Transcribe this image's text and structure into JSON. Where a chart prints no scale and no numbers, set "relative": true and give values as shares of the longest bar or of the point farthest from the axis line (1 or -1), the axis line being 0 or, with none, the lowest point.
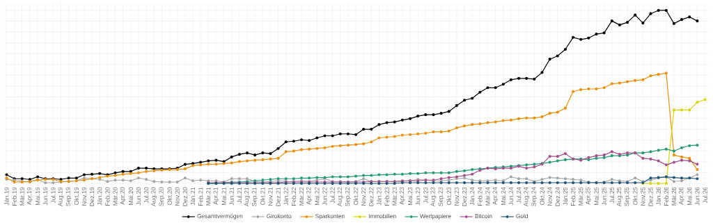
{
  "chart_data": {
    "type": "line",
    "relative": true,
    "grid": true,
    "legend": "bottom",
    "marker": "circle",
    "categories": [
      "Jän.19",
      "Feb.19",
      "Mär.19",
      "Apr.19",
      "Mai.19",
      "Jun.19",
      "Jul.19",
      "Aug.19",
      "Sep.19",
      "Okt.19",
      "Nov.19",
      "Dez.19",
      "Jän.20",
      "Feb.20",
      "Mär.20",
      "Apr.20",
      "Mai.20",
      "Jun.20",
      "Jul.20",
      "Aug.20",
      "Sep.20",
      "Okt.20",
      "Nov.20",
      "Dez.20",
      "Jän.21",
      "Feb.21",
      "Mär.21",
      "Apr.21",
      "Mai.21",
      "Jun.21",
      "Jul.21",
      "Aug.21",
      "Sep.21",
      "Okt.21",
      "Nov.21",
      "Dez.21",
      "Jän.22",
      "Feb.22",
      "Mär.22",
      "Apr.22",
      "Mai.22",
      "Jun.22",
      "Jul.22",
      "Aug.22",
      "Sep.22",
      "Okt.22",
      "Nov.22",
      "Dez.22",
      "Jän.23",
      "Feb.23",
      "Mär.23",
      "Apr.23",
      "Mai.23",
      "Jun.23",
      "Jul.23",
      "Aug.23",
      "Sep.23",
      "Okt.23",
      "Nov.23",
      "Dez.23",
      "Jän.24",
      "Feb.24",
      "Mär.24",
      "Apr.24",
      "Mai.24",
      "Jun.24",
      "Jul.24",
      "Aug.24",
      "Sep.24",
      "Okt.24",
      "Nov.24",
      "Dez.24",
      "Jän.25",
      "Feb.25",
      "Mär.25",
      "Apr.25",
      "Mai.25",
      "Jun.25",
      "Jul.25",
      "Aug.25",
      "Sep.25",
      "Okt.25",
      "Nov.25",
      "Dez.25",
      "Jän.26",
      "Feb.26",
      "Mär.26",
      "Apr.26",
      "Mai.26",
      "Jun.26",
      "Jul.26"
    ],
    "series": [
      {
        "name": "Gesamtvermögen",
        "color": "#000000",
        "values": [
          0.05,
          0.027,
          0.027,
          0.023,
          0.038,
          0.027,
          0.027,
          0.023,
          0.031,
          0.031,
          0.05,
          0.053,
          0.057,
          0.05,
          0.061,
          0.069,
          0.069,
          0.088,
          0.088,
          0.084,
          0.084,
          0.084,
          0.088,
          0.11,
          0.115,
          0.122,
          0.13,
          0.134,
          0.126,
          0.153,
          0.168,
          0.176,
          0.164,
          0.176,
          0.172,
          0.202,
          0.24,
          0.244,
          0.252,
          0.248,
          0.263,
          0.275,
          0.275,
          0.286,
          0.286,
          0.282,
          0.313,
          0.313,
          0.34,
          0.351,
          0.355,
          0.366,
          0.374,
          0.389,
          0.397,
          0.397,
          0.405,
          0.416,
          0.45,
          0.481,
          0.492,
          0.527,
          0.553,
          0.553,
          0.573,
          0.599,
          0.607,
          0.607,
          0.603,
          0.641,
          0.718,
          0.737,
          0.775,
          0.844,
          0.832,
          0.84,
          0.863,
          0.87,
          0.939,
          0.916,
          0.931,
          0.973,
          0.927,
          0.981,
          1,
          1,
          0.924,
          0.947,
          0.962,
          0.939,
          null
        ]
      },
      {
        "name": "Girokonto",
        "color": "#a5a5a5",
        "values": [
          0.023,
          0.019,
          0.011,
          0.008,
          0.023,
          0.004,
          0.004,
          0.008,
          0.011,
          0.015,
          0.031,
          0.027,
          0.023,
          0.011,
          0.019,
          0.019,
          0.015,
          0.031,
          0.023,
          0.011,
          0.008,
          0.008,
          0.008,
          0.031,
          0.015,
          0.019,
          0.015,
          0.015,
          0.008,
          0.027,
          0.027,
          0.027,
          0.011,
          0.008,
          0.011,
          0.015,
          0.011,
          0.011,
          0.015,
          0.011,
          0.019,
          0.027,
          0.011,
          0.011,
          0.008,
          0.011,
          0.027,
          0.011,
          0.011,
          0.011,
          0.011,
          0.011,
          0.015,
          0.023,
          0.019,
          0.015,
          0.015,
          0.019,
          0.027,
          0.031,
          0.019,
          0.015,
          0.015,
          0.019,
          0.015,
          0.038,
          0.027,
          0.027,
          0.011,
          0.023,
          0.034,
          0.031,
          0.027,
          0.023,
          0.019,
          0.008,
          0.004,
          0.008,
          0.023,
          0.015,
          0.011,
          0.031,
          0.011,
          0.019,
          0.031,
          0.038,
          0.011,
          0.015,
          0.031,
          0.05,
          null
        ]
      },
      {
        "name": "Sparkonten",
        "color": "#e8900c",
        "values": [
          0.031,
          0.008,
          0.008,
          0.011,
          0.019,
          0.023,
          0.023,
          0.011,
          0.011,
          0.015,
          0.019,
          0.027,
          0.034,
          0.042,
          0.046,
          0.053,
          0.057,
          0.061,
          0.069,
          0.073,
          0.076,
          0.08,
          0.08,
          0.084,
          0.103,
          0.107,
          0.111,
          0.111,
          0.115,
          0.118,
          0.126,
          0.13,
          0.134,
          0.137,
          0.141,
          0.145,
          0.183,
          0.187,
          0.195,
          0.198,
          0.202,
          0.206,
          0.214,
          0.218,
          0.221,
          0.225,
          0.229,
          0.24,
          0.263,
          0.267,
          0.271,
          0.279,
          0.282,
          0.286,
          0.29,
          0.298,
          0.298,
          0.302,
          0.321,
          0.332,
          0.34,
          0.344,
          0.351,
          0.355,
          0.363,
          0.366,
          0.374,
          0.378,
          0.378,
          0.385,
          0.405,
          0.412,
          0.435,
          0.531,
          0.542,
          0.546,
          0.546,
          0.553,
          0.576,
          0.58,
          0.588,
          0.595,
          0.599,
          0.622,
          0.63,
          0.637,
          0.164,
          0.153,
          0.145,
          0.08,
          null
        ]
      },
      {
        "name": "Immobilien",
        "color": "#d6d600",
        "values": [
          null,
          null,
          null,
          null,
          null,
          null,
          null,
          null,
          null,
          null,
          null,
          null,
          null,
          null,
          null,
          null,
          null,
          null,
          null,
          null,
          null,
          null,
          null,
          null,
          null,
          null,
          null,
          null,
          null,
          null,
          null,
          null,
          null,
          null,
          null,
          null,
          null,
          null,
          null,
          null,
          null,
          null,
          null,
          null,
          null,
          null,
          null,
          null,
          null,
          null,
          null,
          null,
          null,
          null,
          null,
          null,
          null,
          null,
          null,
          null,
          null,
          null,
          null,
          null,
          null,
          null,
          null,
          null,
          null,
          null,
          null,
          null,
          null,
          null,
          null,
          null,
          null,
          null,
          null,
          null,
          null,
          null,
          0,
          0,
          0,
          0,
          0.424,
          0.424,
          0.424,
          0.469,
          0.485
        ]
      },
      {
        "name": "Wertpapiere",
        "color": "#249a78",
        "values": [
          null,
          null,
          null,
          null,
          null,
          null,
          null,
          null,
          null,
          null,
          null,
          null,
          null,
          null,
          null,
          null,
          null,
          null,
          null,
          null,
          null,
          null,
          null,
          null,
          null,
          null,
          0,
          0,
          0.004,
          0.008,
          0.008,
          0.011,
          0.015,
          0.019,
          0.023,
          0.027,
          0.027,
          0.027,
          0.031,
          0.031,
          0.034,
          0.034,
          0.038,
          0.038,
          0.038,
          0.042,
          0.046,
          0.046,
          0.05,
          0.05,
          0.053,
          0.053,
          0.057,
          0.057,
          0.061,
          0.061,
          0.061,
          0.061,
          0.069,
          0.073,
          0.08,
          0.084,
          0.088,
          0.092,
          0.095,
          0.099,
          0.103,
          0.107,
          0.111,
          0.115,
          0.122,
          0.13,
          0.137,
          0.141,
          0.141,
          0.137,
          0.145,
          0.149,
          0.16,
          0.16,
          0.164,
          0.176,
          0.176,
          0.183,
          0.191,
          0.198,
          0.187,
          0.206,
          0.218,
          0.221,
          null
        ]
      },
      {
        "name": "Bitcoin",
        "color": "#a4508a",
        "values": [
          null,
          null,
          null,
          null,
          null,
          null,
          null,
          null,
          null,
          null,
          null,
          null,
          null,
          null,
          null,
          null,
          null,
          null,
          null,
          null,
          null,
          null,
          null,
          null,
          null,
          null,
          0.004,
          0.004,
          0.004,
          0.004,
          0.004,
          0.004,
          0.004,
          0.004,
          0.004,
          0.004,
          0.008,
          0.008,
          0.008,
          0.008,
          0.008,
          0.008,
          0.008,
          0.008,
          0.008,
          0.008,
          0.008,
          0.011,
          0.011,
          0.011,
          0.011,
          0.015,
          0.015,
          0.015,
          0.019,
          0.019,
          0.027,
          0.034,
          0.038,
          0.046,
          0.053,
          0.076,
          0.088,
          0.084,
          0.088,
          0.088,
          0.099,
          0.088,
          0.095,
          0.111,
          0.156,
          0.156,
          0.172,
          0.141,
          0.134,
          0.149,
          0.16,
          0.164,
          0.183,
          0.168,
          0.176,
          0.176,
          0.145,
          0.141,
          0.13,
          0.107,
          0.122,
          0.134,
          0.13,
          0.111,
          null
        ]
      },
      {
        "name": "Gold",
        "color": "#1f5578",
        "values": [
          null,
          null,
          null,
          null,
          null,
          null,
          null,
          null,
          null,
          null,
          null,
          null,
          null,
          null,
          null,
          null,
          null,
          null,
          null,
          null,
          null,
          null,
          null,
          null,
          null,
          null,
          0,
          0,
          0,
          0,
          0,
          0,
          0,
          0,
          0,
          0,
          0,
          0,
          0,
          0,
          0,
          0,
          0,
          0,
          0,
          0,
          0,
          0,
          0,
          0,
          0,
          0.004,
          0.004,
          0.004,
          0.004,
          0.004,
          0.004,
          0.004,
          0.004,
          0.004,
          0.004,
          0.004,
          0.004,
          0.004,
          0.004,
          0.004,
          0.004,
          0.004,
          0.004,
          0.004,
          0.004,
          0.004,
          0.004,
          0.004,
          0.004,
          0.004,
          0.004,
          0.004,
          0.004,
          0.004,
          0.004,
          0.004,
          0.004,
          0.031,
          0.034,
          0.038,
          0.034,
          0.031,
          0.031,
          0.027,
          null
        ]
      }
    ]
  }
}
